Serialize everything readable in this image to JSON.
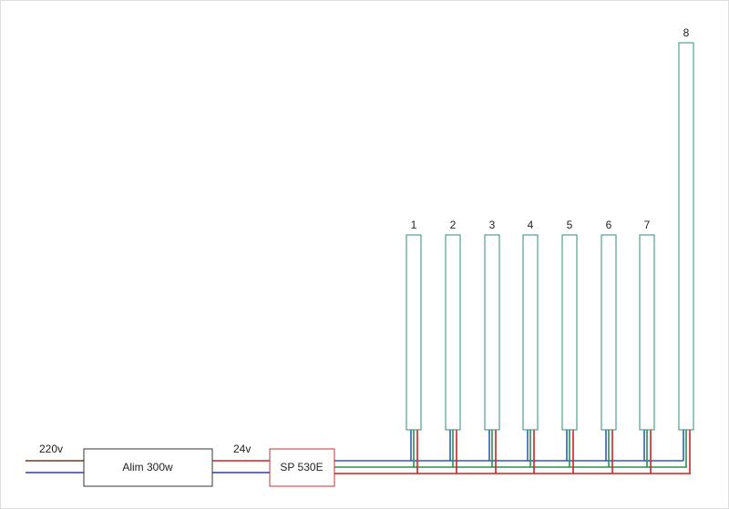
{
  "input": {
    "label": "220v",
    "wire_colors": [
      "#6b3a1e",
      "#2b3fae"
    ]
  },
  "power_supply": {
    "label": "Alim 300w",
    "border_color": "#333333"
  },
  "output": {
    "label": "24v",
    "wire_colors": [
      "#cc2222",
      "#2b3fae"
    ]
  },
  "controller": {
    "label": "SP 530E",
    "border_color": "#c03030"
  },
  "bus_colors": {
    "blue": "#2b5fae",
    "green": "#2e8b57",
    "red": "#cc2222"
  },
  "strip_border_color": "#2e8b7a",
  "strips": [
    {
      "label": "1"
    },
    {
      "label": "2"
    },
    {
      "label": "3"
    },
    {
      "label": "4"
    },
    {
      "label": "5"
    },
    {
      "label": "6"
    },
    {
      "label": "7"
    },
    {
      "label": "8"
    }
  ]
}
